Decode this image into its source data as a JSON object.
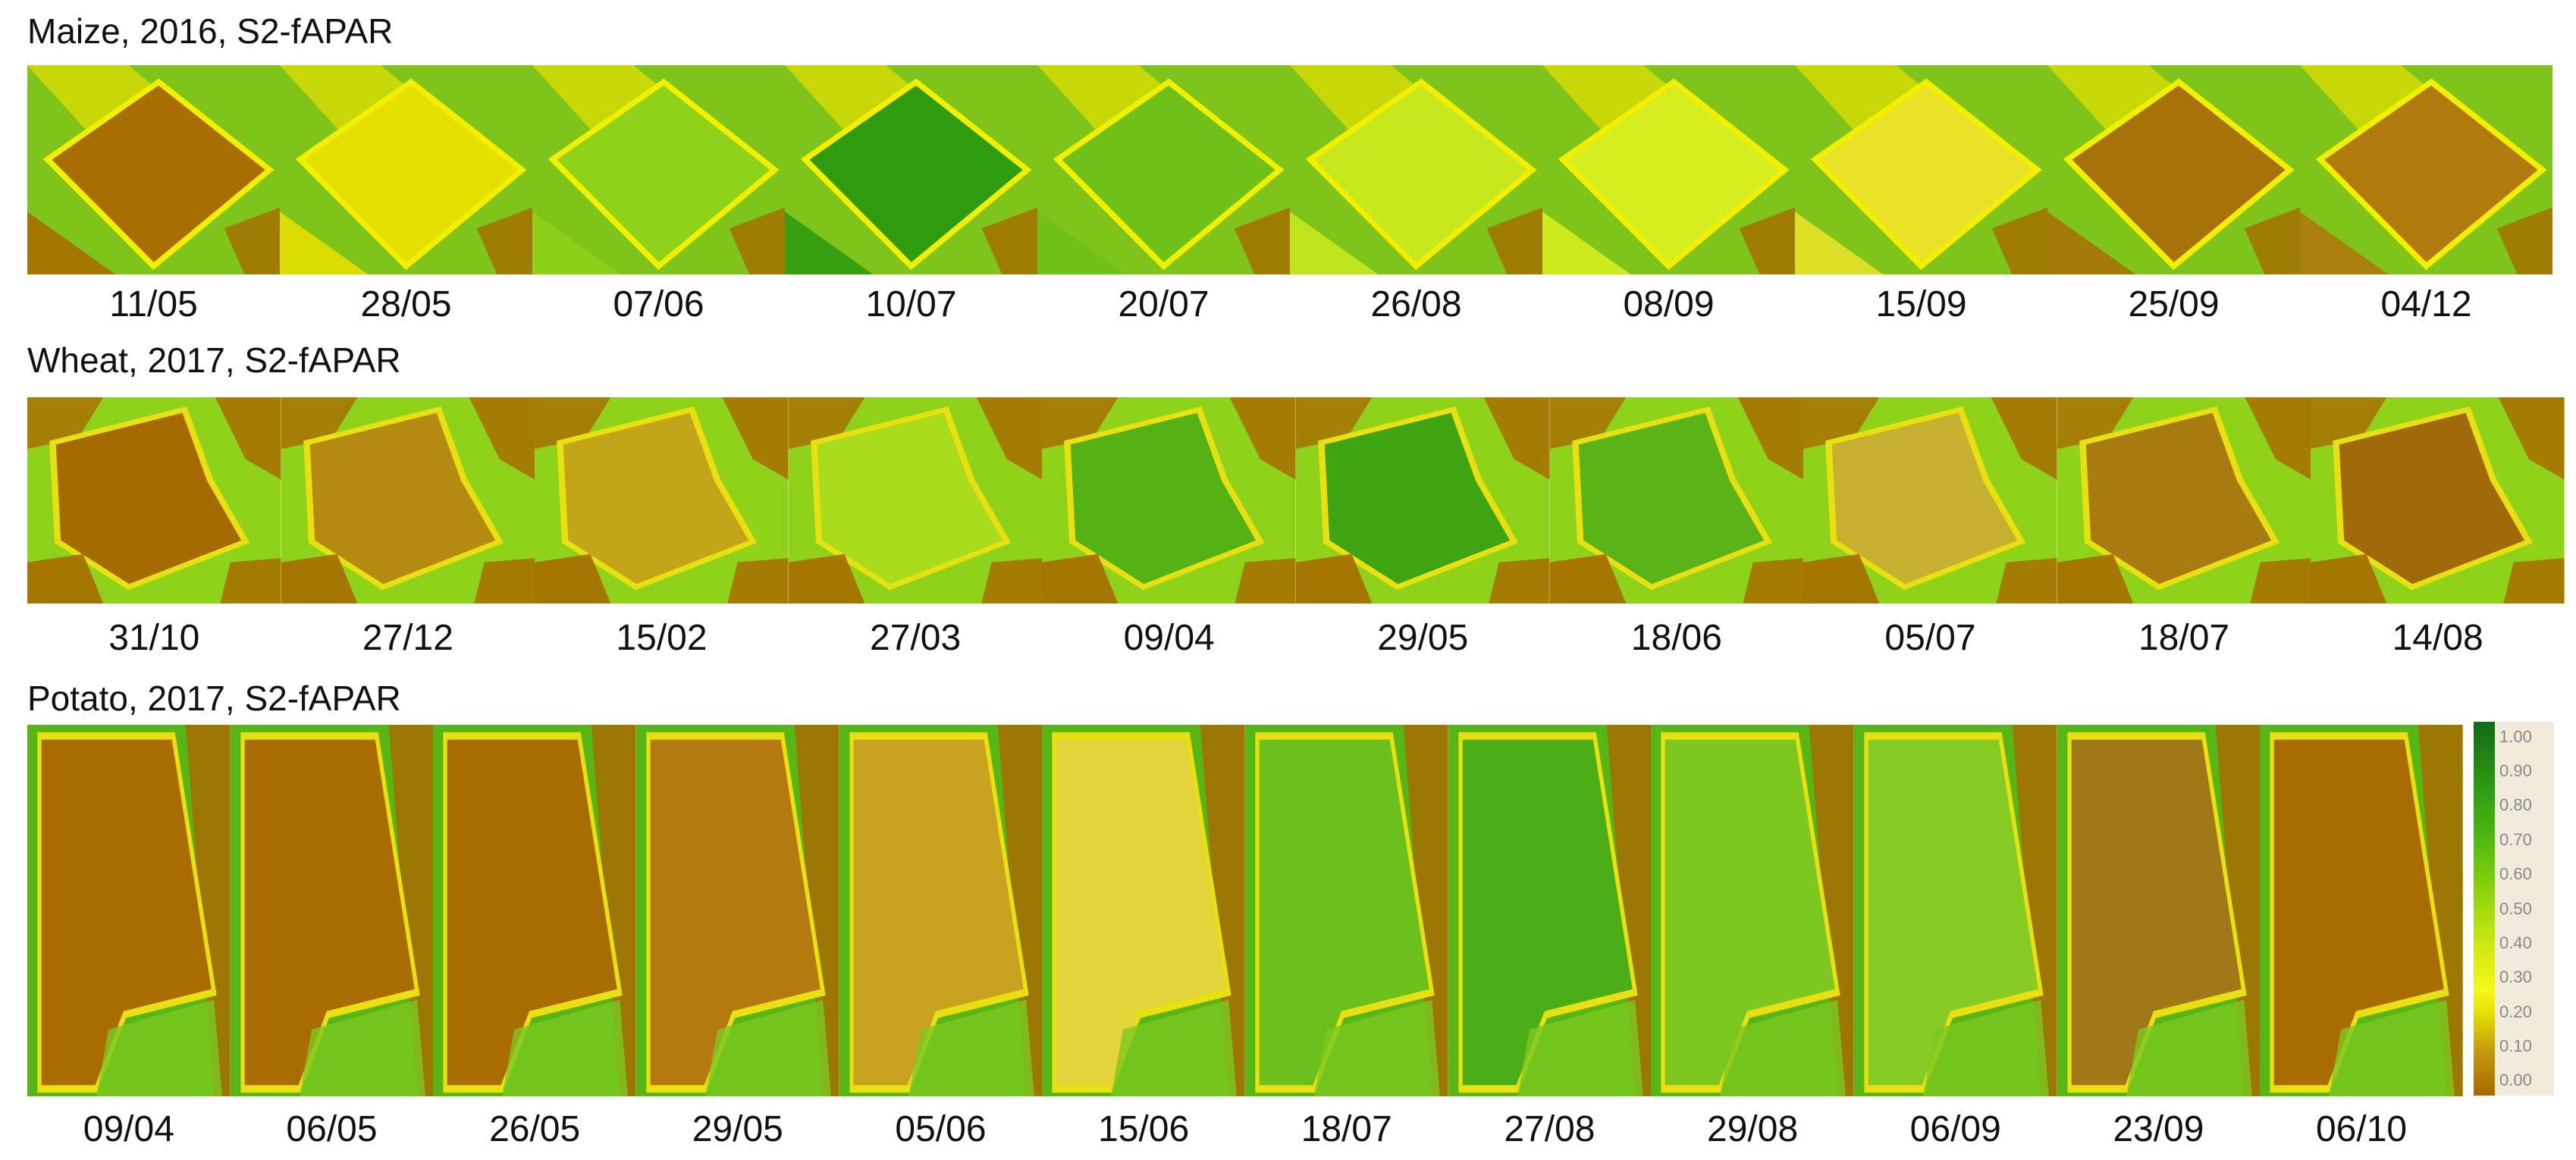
{
  "panels": [
    {
      "title": "Maize, 2016, S2-fAPAR",
      "dates": [
        "11/05",
        "28/05",
        "07/06",
        "10/07",
        "20/07",
        "26/08",
        "08/09",
        "15/09",
        "25/09",
        "04/12"
      ],
      "tile_colors": [
        "#a86e00",
        "#e6e000",
        "#8fd21a",
        "#2f9c10",
        "#6fc018",
        "#c8e81e",
        "#d6ee20",
        "#e8e228",
        "#a8720a",
        "#b07a0c"
      ]
    },
    {
      "title": "Wheat, 2017, S2-fAPAR",
      "dates": [
        "31/10",
        "27/12",
        "15/02",
        "27/03",
        "09/04",
        "29/05",
        "18/06",
        "05/07",
        "18/07",
        "14/08"
      ],
      "tile_colors": [
        "#a56a00",
        "#b48a10",
        "#c4a418",
        "#a8dc1c",
        "#55b214",
        "#3fa412",
        "#5ab418",
        "#c8b030",
        "#a87a10",
        "#a06a0a"
      ]
    },
    {
      "title": "Potato, 2017, S2-fAPAR",
      "dates": [
        "09/04",
        "06/05",
        "26/05",
        "29/05",
        "05/06",
        "15/06",
        "18/07",
        "27/08",
        "29/08",
        "06/09",
        "23/09",
        "06/10"
      ],
      "tile_colors": [
        "#a86c00",
        "#a86c00",
        "#a86c00",
        "#b47a10",
        "#c8a220",
        "#e2d43a",
        "#6cc01c",
        "#4cae16",
        "#7cc820",
        "#86cc24",
        "#a07818",
        "#a86c00"
      ]
    }
  ],
  "legend": {
    "ticks": [
      "1.00",
      "0.90",
      "0.80",
      "0.70",
      "0.60",
      "0.50",
      "0.40",
      "0.30",
      "0.20",
      "0.10",
      "0.00"
    ]
  }
}
